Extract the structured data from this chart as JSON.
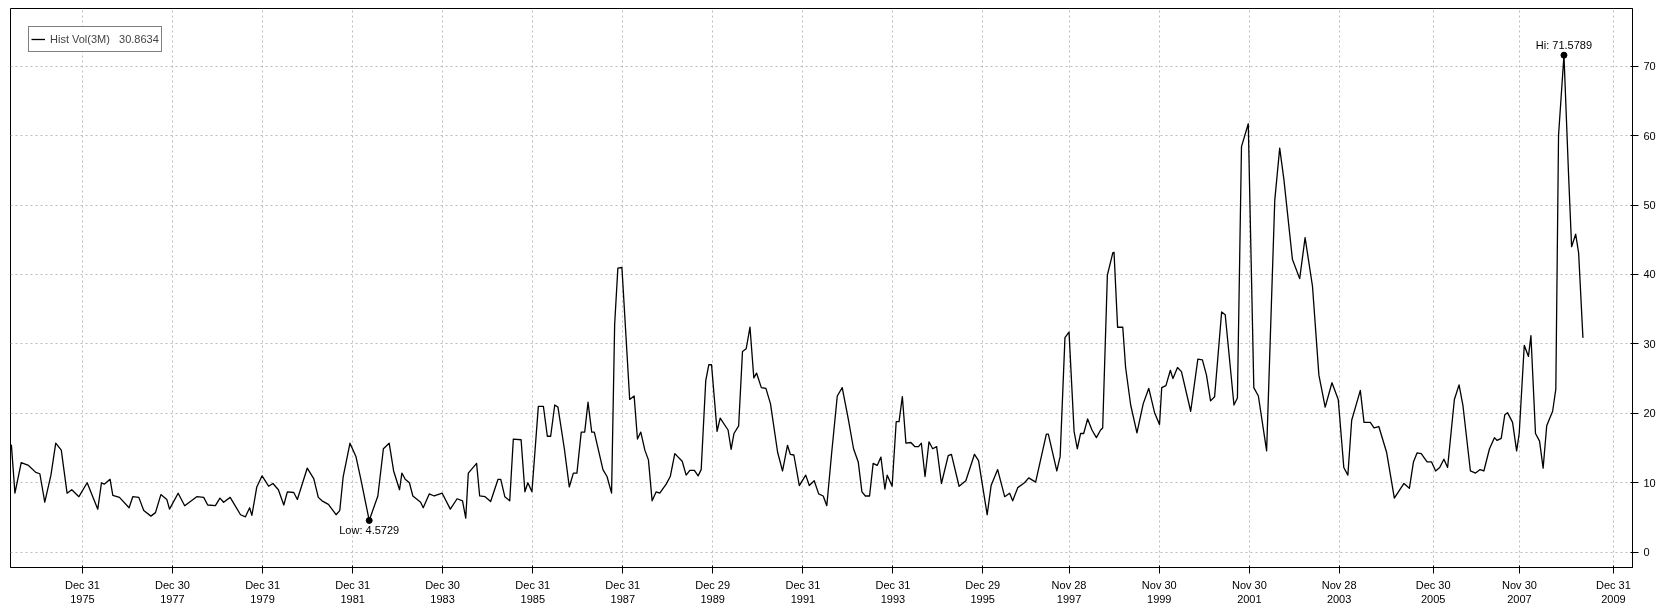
{
  "chart_data": {
    "type": "line",
    "legend": "top left",
    "grid": true,
    "line_style": "solid",
    "marker": "none",
    "xlim": [
      "1974-05-26",
      "2010-06-04"
    ],
    "ylim": [
      -2.2,
      78.3
    ],
    "xticks": [
      {
        "value": "1975-12-31",
        "label": "Dec 31\n1975"
      },
      {
        "value": "1977-12-30",
        "label": "Dec 30\n1977"
      },
      {
        "value": "1979-12-31",
        "label": "Dec 31\n1979"
      },
      {
        "value": "1981-12-31",
        "label": "Dec 31\n1981"
      },
      {
        "value": "1983-12-30",
        "label": "Dec 30\n1983"
      },
      {
        "value": "1985-12-31",
        "label": "Dec 31\n1985"
      },
      {
        "value": "1987-12-31",
        "label": "Dec 31\n1987"
      },
      {
        "value": "1989-12-29",
        "label": "Dec 29\n1989"
      },
      {
        "value": "1991-12-31",
        "label": "Dec 31\n1991"
      },
      {
        "value": "1993-12-31",
        "label": "Dec 31\n1993"
      },
      {
        "value": "1995-12-29",
        "label": "Dec 29\n1995"
      },
      {
        "value": "1997-11-28",
        "label": "Nov 28\n1997"
      },
      {
        "value": "1999-11-30",
        "label": "Nov 30\n1999"
      },
      {
        "value": "2001-11-30",
        "label": "Nov 30\n2001"
      },
      {
        "value": "2003-11-28",
        "label": "Nov 28\n2003"
      },
      {
        "value": "2005-12-30",
        "label": "Dec 30\n2005"
      },
      {
        "value": "2007-11-30",
        "label": "Nov 30\n2007"
      },
      {
        "value": "2009-12-31",
        "label": "Dec 31\n2009"
      }
    ],
    "yticks": [
      0,
      10,
      20,
      30,
      40,
      50,
      60,
      70
    ],
    "annotations": [
      {
        "text": "Low: 4.5729",
        "x": "1982-05-14",
        "y": 4.5729
      },
      {
        "text": "Hi: 71.5789",
        "x": "2008-11-25",
        "y": 71.5789
      }
    ],
    "series": [
      {
        "name": "Hist Vol(3M)   30.8634",
        "color": "#000000",
        "x": [
          "1974-06-02",
          "1974-07-01",
          "1974-08-21",
          "1974-10-19",
          "1974-12-17",
          "1975-01-19",
          "1975-02-28",
          "1975-04-19",
          "1975-05-28",
          "1975-07-12",
          "1975-08-28",
          "1975-10-05",
          "1975-12-02",
          "1976-02-07",
          "1976-05-03",
          "1976-06-02",
          "1976-06-24",
          "1976-08-11",
          "1976-09-02",
          "1976-10-26",
          "1977-01-12",
          "1977-02-11",
          "1977-04-01",
          "1977-05-11",
          "1977-07-08",
          "1977-08-14",
          "1977-09-27",
          "1977-11-14",
          "1977-12-06",
          "1978-02-14",
          "1978-04-08",
          "1978-07-15",
          "1978-09-09",
          "1978-10-12",
          "1978-12-13",
          "1979-01-19",
          "1979-02-18",
          "1979-04-12",
          "1979-07-05",
          "1979-08-14",
          "1979-09-17",
          "1979-10-05",
          "1979-11-14",
          "1979-12-27",
          "1980-02-18",
          "1980-03-24",
          "1980-05-07",
          "1980-06-20",
          "1980-07-19",
          "1980-09-09",
          "1980-10-08",
          "1980-12-27",
          "1981-02-18",
          "1981-03-27",
          "1981-04-26",
          "1981-06-17",
          "1981-08-18",
          "1981-09-17",
          "1981-10-15",
          "1981-12-09",
          "1982-01-26",
          "1982-03-06",
          "1982-05-14",
          "1982-07-23",
          "1982-09-06",
          "1982-10-23",
          "1982-11-28",
          "1983-01-15",
          "1983-02-03",
          "1983-03-02",
          "1983-04-05",
          "1983-05-03",
          "1983-07-05",
          "1983-07-26",
          "1983-09-13",
          "1983-10-23",
          "1983-12-27",
          "1984-03-02",
          "1984-04-26",
          "1984-06-09",
          "1984-07-05",
          "1984-07-26",
          "1984-10-01",
          "1984-10-26",
          "1984-12-09",
          "1985-01-23",
          "1985-03-24",
          "1985-04-15",
          "1985-05-18",
          "1985-06-27",
          "1985-07-26",
          "1985-09-27",
          "1985-10-28",
          "1985-11-21",
          "1985-12-24",
          "1986-02-14",
          "1986-03-27",
          "1986-04-28",
          "1986-05-25",
          "1986-06-27",
          "1986-07-23",
          "1986-09-13",
          "1986-10-23",
          "1986-11-25",
          "1986-12-24",
          "1987-01-28",
          "1987-02-25",
          "1987-03-24",
          "1987-04-23",
          "1987-05-14",
          "1987-07-23",
          "1987-08-25",
          "1987-10-01",
          "1987-10-26",
          "1987-11-21",
          "1987-12-24",
          "1988-02-25",
          "1988-04-01",
          "1988-04-28",
          "1988-05-25",
          "1988-06-27",
          "1988-07-26",
          "1988-08-25",
          "1988-09-27",
          "1988-10-26",
          "1988-12-17",
          "1989-01-19",
          "1989-02-25",
          "1989-04-26",
          "1989-05-28",
          "1989-06-27",
          "1989-08-03",
          "1989-09-02",
          "1989-09-27",
          "1989-11-03",
          "1989-11-28",
          "1989-12-20",
          "1990-02-03",
          "1990-02-28",
          "1990-05-03",
          "1990-05-28",
          "1990-06-20",
          "1990-07-28",
          "1990-08-28",
          "1990-09-27",
          "1990-10-28",
          "1990-11-28",
          "1990-12-20",
          "1991-01-28",
          "1991-03-06",
          "1991-04-12",
          "1991-06-09",
          "1991-07-19",
          "1991-08-28",
          "1991-09-20",
          "1991-10-19",
          "1991-12-02",
          "1992-01-23",
          "1992-02-21",
          "1992-04-01",
          "1992-05-07",
          "1992-06-13",
          "1992-07-12",
          "1992-08-21",
          "1992-10-05",
          "1992-11-14",
          "1993-01-01",
          "1993-02-14",
          "1993-03-24",
          "1993-04-23",
          "1993-05-21",
          "1993-06-24",
          "1993-07-23",
          "1993-08-25",
          "1993-09-24",
          "1993-10-26",
          "1993-11-14",
          "1993-12-24",
          "1994-01-26",
          "1994-02-18",
          "1994-03-17",
          "1994-04-15",
          "1994-05-25",
          "1994-06-27",
          "1994-07-26",
          "1994-08-18",
          "1994-09-17",
          "1994-10-19",
          "1994-11-18",
          "1994-12-20",
          "1995-01-28",
          "1995-03-24",
          "1995-04-19",
          "1995-06-20",
          "1995-08-14",
          "1995-10-23",
          "1995-11-25",
          "1996-02-03",
          "1996-03-06",
          "1996-04-28",
          "1996-06-24",
          "1996-08-03",
          "1996-08-28",
          "1996-10-08",
          "1996-12-02",
          "1997-01-05",
          "1997-03-02",
          "1997-05-28",
          "1997-06-13",
          "1997-08-21",
          "1997-09-17",
          "1997-10-26",
          "1997-11-28",
          "1998-01-08",
          "1998-02-03",
          "1998-03-02",
          "1998-03-27",
          "1998-04-28",
          "1998-06-02",
          "1998-07-08",
          "1998-08-11",
          "1998-08-28",
          "1998-10-05",
          "1998-11-18",
          "1998-11-28",
          "1998-12-27",
          "1999-02-07",
          "1999-03-02",
          "1999-04-12",
          "1999-06-02",
          "1999-07-23",
          "1999-09-06",
          "1999-10-23",
          "1999-12-02",
          "1999-12-20",
          "2000-01-23",
          "2000-02-28",
          "2000-03-20",
          "2000-04-26",
          "2000-05-28",
          "2000-08-11",
          "2000-10-08",
          "2000-11-14",
          "2000-12-17",
          "2001-01-19",
          "2001-02-21",
          "2001-04-19",
          "2001-05-18",
          "2001-07-28",
          "2001-08-25",
          "2001-09-27",
          "2001-11-21",
          "2002-01-05",
          "2002-02-11",
          "2002-04-19",
          "2002-06-24",
          "2002-08-03",
          "2002-09-06",
          "2002-11-14",
          "2003-01-12",
          "2003-02-25",
          "2003-04-26",
          "2003-06-17",
          "2003-08-07",
          "2003-10-01",
          "2003-11-21",
          "2004-01-05",
          "2004-02-07",
          "2004-03-09",
          "2004-05-18",
          "2004-06-17",
          "2004-08-07",
          "2004-09-06",
          "2004-10-15",
          "2004-12-17",
          "2005-02-18",
          "2005-05-07",
          "2005-06-20",
          "2005-07-23",
          "2005-08-21",
          "2005-09-24",
          "2005-11-11",
          "2005-12-17",
          "2006-01-19",
          "2006-02-21",
          "2006-03-27",
          "2006-04-26",
          "2006-06-20",
          "2006-07-28",
          "2006-08-28",
          "2006-10-28",
          "2006-12-09",
          "2007-01-15",
          "2007-02-14",
          "2007-04-01",
          "2007-05-11",
          "2007-06-02",
          "2007-07-05",
          "2007-08-03",
          "2007-08-25",
          "2007-10-05",
          "2007-11-07",
          "2007-11-28",
          "2008-01-08",
          "2008-02-11",
          "2008-03-02",
          "2008-04-08",
          "2008-05-11",
          "2008-06-09",
          "2008-07-08",
          "2008-08-25",
          "2008-09-20",
          "2008-10-12",
          "2008-11-25",
          "2009-01-01",
          "2009-01-26",
          "2009-02-28",
          "2009-03-24",
          "2009-04-28"
        ],
        "values": [
          15.5,
          8.5,
          12.9,
          12.5,
          11.5,
          11.3,
          7.2,
          11.1,
          15.7,
          14.7,
          8.5,
          9.0,
          8.0,
          10.0,
          6.2,
          10.0,
          9.8,
          10.5,
          8.2,
          7.9,
          6.4,
          8.0,
          7.9,
          6.0,
          5.2,
          5.7,
          8.3,
          7.6,
          6.2,
          8.5,
          6.7,
          8.0,
          7.9,
          6.8,
          6.7,
          7.8,
          7.2,
          7.9,
          5.4,
          5.1,
          6.4,
          5.3,
          9.4,
          11.0,
          9.5,
          9.9,
          9.0,
          6.8,
          8.7,
          8.6,
          7.6,
          12.1,
          10.6,
          7.9,
          7.4,
          6.9,
          5.4,
          6.0,
          10.9,
          15.7,
          13.8,
          10.6,
          4.5729,
          8.1,
          14.9,
          15.7,
          11.7,
          9.0,
          11.4,
          10.5,
          10.0,
          8.1,
          7.2,
          6.4,
          8.4,
          8.1,
          8.5,
          6.2,
          7.7,
          7.4,
          4.9,
          11.4,
          12.8,
          8.1,
          8.0,
          7.3,
          10.5,
          10.5,
          8.0,
          7.4,
          16.3,
          16.2,
          8.7,
          10.0,
          8.7,
          21.0,
          21.0,
          16.7,
          16.7,
          21.2,
          20.9,
          14.9,
          9.4,
          11.4,
          11.4,
          17.3,
          17.3,
          21.6,
          17.3,
          17.3,
          11.9,
          10.9,
          8.5,
          32.8,
          40.9,
          41.0,
          22.0,
          22.5,
          16.3,
          17.3,
          14.7,
          13.3,
          7.4,
          8.7,
          8.5,
          9.8,
          10.9,
          14.2,
          13.1,
          11.1,
          11.8,
          11.8,
          11.0,
          11.9,
          24.7,
          27.0,
          27.0,
          17.4,
          19.3,
          17.6,
          14.8,
          17.1,
          18.2,
          28.9,
          29.3,
          32.4,
          25.1,
          25.8,
          23.7,
          23.6,
          21.4,
          14.4,
          11.7,
          15.4,
          14.1,
          14.0,
          9.6,
          11.1,
          9.6,
          10.3,
          8.4,
          8.1,
          6.7,
          14.4,
          22.5,
          23.7,
          19.3,
          14.9,
          13.0,
          8.7,
          8.1,
          8.1,
          12.8,
          12.5,
          13.7,
          9.1,
          11.1,
          9.5,
          18.8,
          18.8,
          22.4,
          15.7,
          15.8,
          15.2,
          15.2,
          15.7,
          10.9,
          15.9,
          14.9,
          15.2,
          9.9,
          13.9,
          14.1,
          9.5,
          10.3,
          14.1,
          13.2,
          5.4,
          9.6,
          11.9,
          8.0,
          8.5,
          7.4,
          9.3,
          10.0,
          10.7,
          10.1,
          17.0,
          17.0,
          11.7,
          13.8,
          30.9,
          31.7,
          17.4,
          14.9,
          17.1,
          17.1,
          19.2,
          17.6,
          16.5,
          17.6,
          17.9,
          39.9,
          43.1,
          43.2,
          32.4,
          32.4,
          26.6,
          21.2,
          17.2,
          21.4,
          23.6,
          20.1,
          18.4,
          23.7,
          24.0,
          26.2,
          25.0,
          26.6,
          26.0,
          20.3,
          27.8,
          27.7,
          25.5,
          21.8,
          22.4,
          34.6,
          34.2,
          21.2,
          22.2,
          58.4,
          61.7,
          23.7,
          22.5,
          14.6,
          50.7,
          58.2,
          53.7,
          42.2,
          39.4,
          45.3,
          38.3,
          25.5,
          20.9,
          24.4,
          22.0,
          12.2,
          11.1,
          19.0,
          23.3,
          18.7,
          18.7,
          17.9,
          18.1,
          14.4,
          7.8,
          9.9,
          9.2,
          13.0,
          14.3,
          14.2,
          13.0,
          13.0,
          11.7,
          12.2,
          13.4,
          12.2,
          22.0,
          24.1,
          21.2,
          11.7,
          11.4,
          11.9,
          11.7,
          14.9,
          16.5,
          16.1,
          16.4,
          19.8,
          20.1,
          18.7,
          14.6,
          17.1,
          29.8,
          28.2,
          31.2,
          17.1,
          16.0,
          12.1,
          18.2,
          20.3,
          23.5,
          60.0,
          71.5789,
          54.5,
          44.0,
          45.8,
          43.1,
          30.8634
        ]
      }
    ]
  }
}
